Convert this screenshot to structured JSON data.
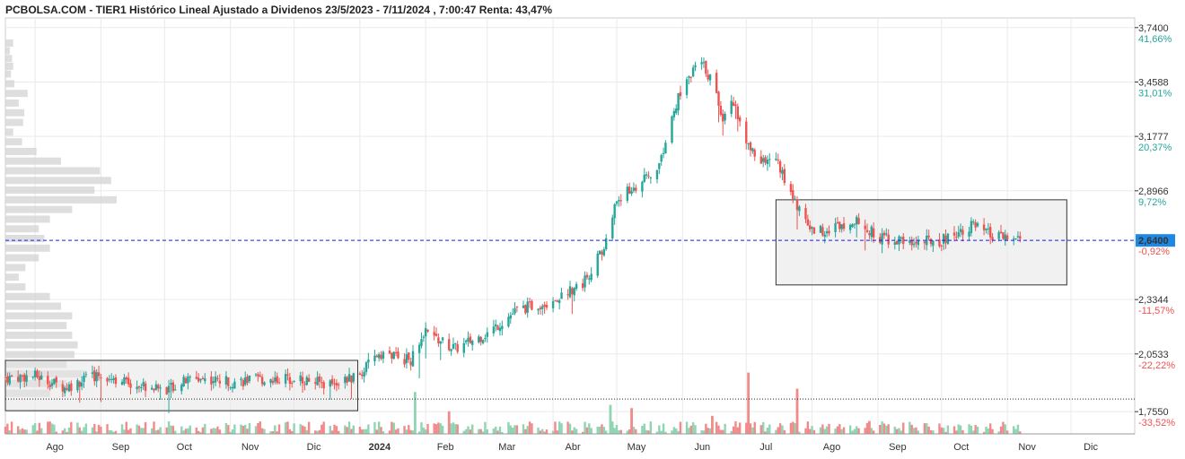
{
  "header": {
    "title": "PCBOLSA.COM - TIER1 Histórico Lineal Ajustado a Dividenos 23/5/2023 - 7/11/2024 , 7:00:47 Renta: 43,47%"
  },
  "colors": {
    "up": "#26a69a",
    "down": "#ef5350",
    "up_volume": "#8fd4b3",
    "down_volume": "#f28a8a",
    "profile": "#d3d3d3",
    "range_box_fill": "#e6e6e6",
    "range_box_stroke": "#333333",
    "last_price_line": "#1a1aee",
    "last_price_bg": "#1e88e5",
    "pct_positive": "#26a69a",
    "pct_negative": "#ef5350",
    "grid": "#eaeaea"
  },
  "chart_data": {
    "type": "candlestick",
    "title": "PCBOLSA.COM - TIER1 Histórico Lineal Ajustado a Dividenos 23/5/2023 - 7/11/2024 , 7:00:47 Renta: 43,47%",
    "grid": true,
    "legend": "none",
    "volume_panel": true,
    "volume_profile": "left",
    "x_range": [
      "2023-07-18",
      "2024-12-31"
    ],
    "x_ticks": [
      {
        "label": "Ago",
        "date": "2023-08-01",
        "bold": false
      },
      {
        "label": "Sep",
        "date": "2023-09-01",
        "bold": false
      },
      {
        "label": "Oct",
        "date": "2023-10-01",
        "bold": false
      },
      {
        "label": "Nov",
        "date": "2023-11-01",
        "bold": false
      },
      {
        "label": "Dic",
        "date": "2023-12-01",
        "bold": false
      },
      {
        "label": "2024",
        "date": "2024-01-01",
        "bold": true
      },
      {
        "label": "Feb",
        "date": "2024-02-01",
        "bold": false
      },
      {
        "label": "Mar",
        "date": "2024-03-01",
        "bold": false
      },
      {
        "label": "Abr",
        "date": "2024-04-01",
        "bold": false
      },
      {
        "label": "May",
        "date": "2024-05-01",
        "bold": false
      },
      {
        "label": "Jun",
        "date": "2024-06-01",
        "bold": false
      },
      {
        "label": "Jul",
        "date": "2024-07-01",
        "bold": false
      },
      {
        "label": "Ago",
        "date": "2024-08-01",
        "bold": false
      },
      {
        "label": "Sep",
        "date": "2024-09-01",
        "bold": false
      },
      {
        "label": "Oct",
        "date": "2024-10-01",
        "bold": false
      },
      {
        "label": "Nov",
        "date": "2024-11-01",
        "bold": false
      },
      {
        "label": "Dic",
        "date": "2024-12-01",
        "bold": false
      }
    ],
    "y_axis": {
      "scale": "linear",
      "ylim": [
        1.64,
        3.79
      ],
      "ticks": [
        {
          "value": 3.74,
          "label": "3,7400",
          "pct": "41,66%"
        },
        {
          "value": 3.4588,
          "label": "3,4588",
          "pct": "31,01%"
        },
        {
          "value": 3.1777,
          "label": "3,1777",
          "pct": "20,37%"
        },
        {
          "value": 2.8966,
          "label": "2,8966",
          "pct": "9,72%"
        },
        {
          "value": 2.3344,
          "label": "2,3344",
          "pct": "-11,57%"
        },
        {
          "value": 2.0533,
          "label": "2,0533",
          "pct": "-22,22%"
        },
        {
          "value": 1.755,
          "label": "1,7550",
          "pct": "-33,52%"
        }
      ]
    },
    "last_price": {
      "value": 2.64,
      "label": "2,6400",
      "pct": "-0,92%"
    },
    "reference_line": {
      "value": 1.82,
      "style": "dotted"
    },
    "range_boxes": [
      {
        "start": "2023-07-18",
        "end": "2023-12-31",
        "low": 1.76,
        "high": 2.02
      },
      {
        "start": "2024-07-15",
        "end": "2024-11-29",
        "low": 2.41,
        "high": 2.85
      }
    ],
    "price_path": [
      [
        "2023-07-18",
        1.93
      ],
      [
        "2023-08-01",
        1.94
      ],
      [
        "2023-08-15",
        1.88
      ],
      [
        "2023-09-01",
        1.95
      ],
      [
        "2023-09-15",
        1.9
      ],
      [
        "2023-10-01",
        1.87
      ],
      [
        "2023-10-15",
        1.93
      ],
      [
        "2023-11-01",
        1.91
      ],
      [
        "2023-11-15",
        1.92
      ],
      [
        "2023-12-01",
        1.93
      ],
      [
        "2023-12-15",
        1.9
      ],
      [
        "2023-12-31",
        1.93
      ],
      [
        "2024-01-10",
        2.06
      ],
      [
        "2024-01-25",
        2.02
      ],
      [
        "2024-02-01",
        2.16
      ],
      [
        "2024-02-15",
        2.08
      ],
      [
        "2024-03-01",
        2.16
      ],
      [
        "2024-03-15",
        2.28
      ],
      [
        "2024-04-01",
        2.33
      ],
      [
        "2024-04-15",
        2.42
      ],
      [
        "2024-04-25",
        2.6
      ],
      [
        "2024-05-01",
        2.85
      ],
      [
        "2024-05-10",
        2.92
      ],
      [
        "2024-05-20",
        3.0
      ],
      [
        "2024-06-01",
        3.45
      ],
      [
        "2024-06-10",
        3.56
      ],
      [
        "2024-06-15",
        3.46
      ],
      [
        "2024-06-20",
        3.28
      ],
      [
        "2024-06-25",
        3.36
      ],
      [
        "2024-07-01",
        3.13
      ],
      [
        "2024-07-10",
        3.04
      ],
      [
        "2024-07-15",
        3.07
      ],
      [
        "2024-07-20",
        2.92
      ],
      [
        "2024-08-01",
        2.69
      ],
      [
        "2024-08-10",
        2.7
      ],
      [
        "2024-08-20",
        2.75
      ],
      [
        "2024-09-01",
        2.66
      ],
      [
        "2024-09-15",
        2.63
      ],
      [
        "2024-10-01",
        2.64
      ],
      [
        "2024-10-15",
        2.72
      ],
      [
        "2024-10-25",
        2.66
      ],
      [
        "2024-11-07",
        2.64
      ]
    ],
    "profile_bars": [
      [
        3.66,
        0.07
      ],
      [
        3.62,
        0.04
      ],
      [
        3.58,
        0.06
      ],
      [
        3.54,
        0.07
      ],
      [
        3.5,
        0.05
      ],
      [
        3.45,
        0.08
      ],
      [
        3.4,
        0.2
      ],
      [
        3.35,
        0.12
      ],
      [
        3.3,
        0.17
      ],
      [
        3.25,
        0.16
      ],
      [
        3.2,
        0.07
      ],
      [
        3.15,
        0.15
      ],
      [
        3.1,
        0.28
      ],
      [
        3.05,
        0.5
      ],
      [
        3.0,
        0.85
      ],
      [
        2.95,
        0.95
      ],
      [
        2.9,
        0.8
      ],
      [
        2.85,
        1.0
      ],
      [
        2.8,
        0.6
      ],
      [
        2.75,
        0.4
      ],
      [
        2.7,
        0.3
      ],
      [
        2.65,
        0.35
      ],
      [
        2.6,
        0.4
      ],
      [
        2.55,
        0.3
      ],
      [
        2.5,
        0.18
      ],
      [
        2.45,
        0.12
      ],
      [
        2.4,
        0.18
      ],
      [
        2.35,
        0.4
      ],
      [
        2.3,
        0.5
      ],
      [
        2.25,
        0.6
      ],
      [
        2.2,
        0.55
      ],
      [
        2.15,
        0.6
      ],
      [
        2.1,
        0.65
      ],
      [
        2.05,
        0.62
      ],
      [
        2.0,
        0.55
      ],
      [
        1.95,
        0.72
      ],
      [
        1.9,
        0.55
      ],
      [
        1.85,
        0.4
      ]
    ],
    "volume_spikes": [
      [
        "2024-01-27",
        0.65,
        "up"
      ],
      [
        "2024-02-12",
        0.35,
        "down"
      ],
      [
        "2024-04-28",
        0.45,
        "up"
      ],
      [
        "2024-05-08",
        0.4,
        "down"
      ],
      [
        "2024-06-15",
        0.28,
        "down"
      ],
      [
        "2024-07-02",
        0.95,
        "down"
      ],
      [
        "2024-07-25",
        0.7,
        "down"
      ],
      [
        "2024-08-28",
        0.2,
        "down"
      ]
    ]
  }
}
